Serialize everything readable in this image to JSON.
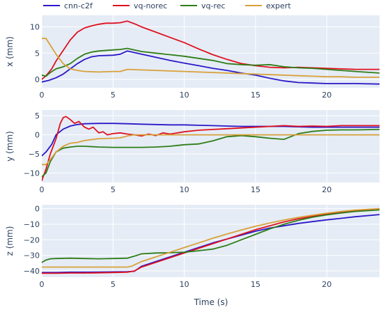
{
  "chart_data": {
    "type": "line",
    "xlabel": "Time (s)",
    "xlim": [
      0,
      23.7
    ],
    "xticks": [
      0,
      5,
      10,
      15,
      20
    ],
    "legend": {
      "placement": "top",
      "orientation": "horizontal"
    },
    "colors": {
      "cnn-c2f": "#2b18c8",
      "vq-norec": "#e0101e",
      "vq-rec": "#2e7d16",
      "expert": "#d9a038"
    },
    "series_names": [
      "cnn-c2f",
      "vq-norec",
      "vq-rec",
      "expert"
    ],
    "panels": [
      {
        "id": "x",
        "ylabel": "x (mm)",
        "ylim": [
          -1.6,
          12.2
        ],
        "yticks": [
          0,
          5,
          10
        ],
        "series": [
          {
            "name": "cnn-c2f",
            "x": [
              0,
              0.5,
              1,
              1.5,
              2,
              2.5,
              3,
              3.5,
              4,
              5,
              5.5,
              6,
              7,
              8,
              9,
              10,
              11,
              12,
              13,
              14,
              15,
              16,
              17,
              18,
              19,
              20,
              21,
              22,
              23.7
            ],
            "y": [
              -0.5,
              -0.2,
              0.3,
              1.0,
              2.0,
              3.0,
              3.8,
              4.3,
              4.5,
              4.6,
              4.8,
              5.4,
              4.8,
              4.2,
              3.6,
              3.1,
              2.6,
              2.1,
              1.7,
              1.2,
              0.8,
              0.2,
              -0.3,
              -0.6,
              -0.7,
              -0.8,
              -0.8,
              -0.8,
              -0.9
            ]
          },
          {
            "name": "vq-norec",
            "x": [
              0,
              0.3,
              0.7,
              1,
              1.5,
              2,
              2.5,
              3,
              3.5,
              4,
              4.5,
              5,
              5.5,
              6,
              6.5,
              7,
              8,
              9,
              10,
              11,
              12,
              13,
              14,
              15,
              16,
              17,
              18,
              19,
              20,
              21,
              22,
              23.7
            ],
            "y": [
              0,
              0.7,
              2.0,
              3.5,
              5.5,
              7.5,
              9.0,
              9.8,
              10.2,
              10.5,
              10.7,
              10.7,
              10.8,
              11.1,
              10.6,
              10.0,
              9.0,
              8.0,
              7.0,
              5.8,
              4.7,
              3.8,
              3.0,
              2.6,
              2.3,
              2.2,
              2.3,
              2.2,
              2.1,
              2.0,
              1.9,
              1.9
            ]
          },
          {
            "name": "vq-rec",
            "x": [
              0,
              0.3,
              0.6,
              1,
              1.5,
              2,
              2.5,
              3,
              3.5,
              4,
              5,
              5.5,
              6,
              6.5,
              7,
              8,
              9,
              10,
              11,
              12,
              13,
              14,
              15,
              16,
              17,
              18,
              19,
              20,
              21,
              22,
              23.7
            ],
            "y": [
              0.8,
              0.6,
              1.3,
              2.0,
              2.4,
              3.0,
              4.0,
              4.8,
              5.2,
              5.4,
              5.6,
              5.7,
              5.9,
              5.6,
              5.3,
              5.0,
              4.7,
              4.4,
              4.0,
              3.6,
              3.0,
              2.8,
              2.7,
              2.8,
              2.4,
              2.2,
              2.1,
              1.9,
              1.7,
              1.5,
              1.2
            ]
          },
          {
            "name": "expert",
            "x": [
              0,
              0.3,
              0.6,
              1,
              1.5,
              2,
              2.5,
              3,
              4,
              5,
              5.5,
              6,
              7,
              8,
              9,
              10,
              11,
              12,
              13,
              14,
              15,
              16,
              17,
              18,
              19,
              20,
              21,
              22,
              23.7
            ],
            "y": [
              7.8,
              7.8,
              6.5,
              4.8,
              3.0,
              2.0,
              1.7,
              1.5,
              1.4,
              1.5,
              1.5,
              1.9,
              1.8,
              1.7,
              1.6,
              1.5,
              1.4,
              1.3,
              1.2,
              1.1,
              1.0,
              0.9,
              0.8,
              0.7,
              0.6,
              0.5,
              0.5,
              0.4,
              0.4
            ]
          }
        ]
      },
      {
        "id": "y",
        "ylabel": "y (mm)",
        "ylim": [
          -12.5,
          6.5
        ],
        "yticks": [
          -10,
          -5,
          0,
          5
        ],
        "series": [
          {
            "name": "cnn-c2f",
            "x": [
              0,
              0.3,
              0.7,
              1,
              1.5,
              2,
              2.5,
              3,
              4,
              5,
              6,
              7,
              8,
              9,
              10,
              11,
              12,
              13,
              14,
              15,
              16,
              17,
              18,
              19,
              20,
              21,
              22,
              23.7
            ],
            "y": [
              -5.5,
              -4.5,
              -2.5,
              0,
              1.5,
              2.3,
              2.7,
              2.9,
              3.0,
              3.0,
              2.9,
              2.8,
              2.7,
              2.6,
              2.6,
              2.5,
              2.4,
              2.3,
              2.2,
              2.2,
              2.2,
              2.2,
              2.1,
              2.0,
              2.0,
              2.0,
              2.0,
              2.0
            ]
          },
          {
            "name": "vq-norec",
            "x": [
              0,
              0.3,
              0.6,
              1,
              1.3,
              1.5,
              1.7,
              2,
              2.3,
              2.6,
              3,
              3.3,
              3.6,
              4,
              4.3,
              4.6,
              5,
              5.5,
              6,
              6.5,
              7,
              7.5,
              8,
              8.5,
              9,
              10,
              11,
              12,
              13,
              14,
              15,
              16,
              17,
              18,
              19,
              20,
              21,
              22,
              23.7
            ],
            "y": [
              -12.0,
              -9,
              -5,
              -1,
              3,
              4.5,
              4.8,
              4.0,
              3.0,
              3.5,
              2.0,
              1.5,
              2.0,
              0.5,
              0.8,
              0,
              0.3,
              0.5,
              0.2,
              0,
              -0.3,
              0.2,
              -0.2,
              0.5,
              0.2,
              0.8,
              1.2,
              1.4,
              1.6,
              1.8,
              2.0,
              2.2,
              2.4,
              2.2,
              2.3,
              2.2,
              2.4,
              2.4,
              2.4
            ]
          },
          {
            "name": "vq-rec",
            "x": [
              0,
              0.3,
              0.6,
              1,
              1.5,
              2,
              2.5,
              3,
              4,
              5,
              6,
              7,
              8,
              9,
              10,
              11,
              12,
              13,
              14,
              15,
              16,
              17,
              18,
              19,
              20,
              21,
              22,
              23.7
            ],
            "y": [
              -11.0,
              -10,
              -7,
              -4.5,
              -3.5,
              -3.2,
              -3.0,
              -3.0,
              -3.2,
              -3.3,
              -3.3,
              -3.3,
              -3.2,
              -3.0,
              -2.6,
              -2.4,
              -1.6,
              -0.5,
              -0.2,
              -0.5,
              -0.9,
              -1.2,
              0.3,
              0.9,
              1.2,
              1.3,
              1.3,
              1.4
            ]
          },
          {
            "name": "expert",
            "x": [
              0,
              0.3,
              0.6,
              1,
              1.5,
              2,
              2.5,
              3,
              4,
              5,
              5.5,
              6,
              6.5,
              7,
              8,
              9,
              10,
              11,
              12,
              13,
              14,
              15,
              16,
              17,
              18,
              19,
              20,
              21,
              22,
              23.7
            ],
            "y": [
              -7.8,
              -7.8,
              -6.5,
              -4.5,
              -3.0,
              -2.2,
              -2.0,
              -1.5,
              -1.0,
              -0.9,
              -0.8,
              -0.3,
              0,
              0,
              0,
              0,
              0,
              0,
              0,
              0,
              0,
              0,
              0,
              0,
              0,
              0,
              0,
              0,
              0,
              0
            ]
          }
        ]
      },
      {
        "id": "z",
        "ylabel": "z (mm)",
        "ylim": [
          -44,
          2.5
        ],
        "yticks": [
          -40,
          -30,
          -20,
          -10,
          0
        ],
        "series": [
          {
            "name": "cnn-c2f",
            "x": [
              0,
              1,
              2,
              3,
              4,
              5,
              6,
              6.5,
              7,
              8,
              9,
              10,
              11,
              12,
              13,
              14,
              15,
              16,
              17,
              18,
              19,
              20,
              21,
              22,
              23.7
            ],
            "y": [
              -41,
              -41,
              -40.8,
              -40.8,
              -40.7,
              -40.6,
              -40.5,
              -40.2,
              -37,
              -34,
              -31,
              -28,
              -25,
              -22,
              -19.5,
              -17,
              -14.5,
              -12.5,
              -11,
              -9.5,
              -8.3,
              -7.2,
              -6.2,
              -5.2,
              -3.8
            ]
          },
          {
            "name": "vq-norec",
            "x": [
              0,
              1,
              2,
              3,
              4,
              5,
              6,
              6.5,
              7,
              8,
              9,
              10,
              11,
              12,
              13,
              14,
              15,
              16,
              17,
              18,
              19,
              20,
              21,
              22,
              23.7
            ],
            "y": [
              -41.5,
              -41.5,
              -41.3,
              -41.3,
              -41.2,
              -41,
              -40.8,
              -40,
              -37.5,
              -34.5,
              -31.5,
              -28.5,
              -25.5,
              -22.5,
              -19.5,
              -16.5,
              -13.5,
              -11,
              -8.5,
              -6.5,
              -5,
              -3.5,
              -2.3,
              -1.5,
              -0.5
            ]
          },
          {
            "name": "vq-rec",
            "x": [
              0,
              0.3,
              0.6,
              1,
              2,
              3,
              4,
              5,
              6,
              6.5,
              7,
              8,
              9,
              10,
              11,
              12,
              13,
              14,
              15,
              16,
              17,
              18,
              19,
              20,
              21,
              22,
              23.7
            ],
            "y": [
              -34.5,
              -33,
              -32.2,
              -32,
              -31.8,
              -32,
              -32.2,
              -32,
              -31.8,
              -30.5,
              -29,
              -28.5,
              -28.3,
              -28,
              -27,
              -26,
              -23.5,
              -20,
              -16.5,
              -13,
              -10,
              -7.5,
              -5.5,
              -4,
              -2.8,
              -1.8,
              -0.8
            ]
          },
          {
            "name": "expert",
            "x": [
              0,
              1,
              2,
              3,
              4,
              5,
              6,
              6.3,
              7,
              8,
              9,
              10,
              11,
              12,
              13,
              14,
              15,
              16,
              17,
              18,
              19,
              20,
              21,
              22,
              23.7
            ],
            "y": [
              -37.5,
              -37.5,
              -37.5,
              -37.5,
              -37.5,
              -37.5,
              -37.5,
              -37,
              -34,
              -31,
              -28,
              -25,
              -22,
              -19,
              -16.3,
              -13.7,
              -11.3,
              -9.2,
              -7.3,
              -5.6,
              -4.2,
              -2.9,
              -1.8,
              -0.9,
              0
            ]
          }
        ]
      }
    ]
  }
}
